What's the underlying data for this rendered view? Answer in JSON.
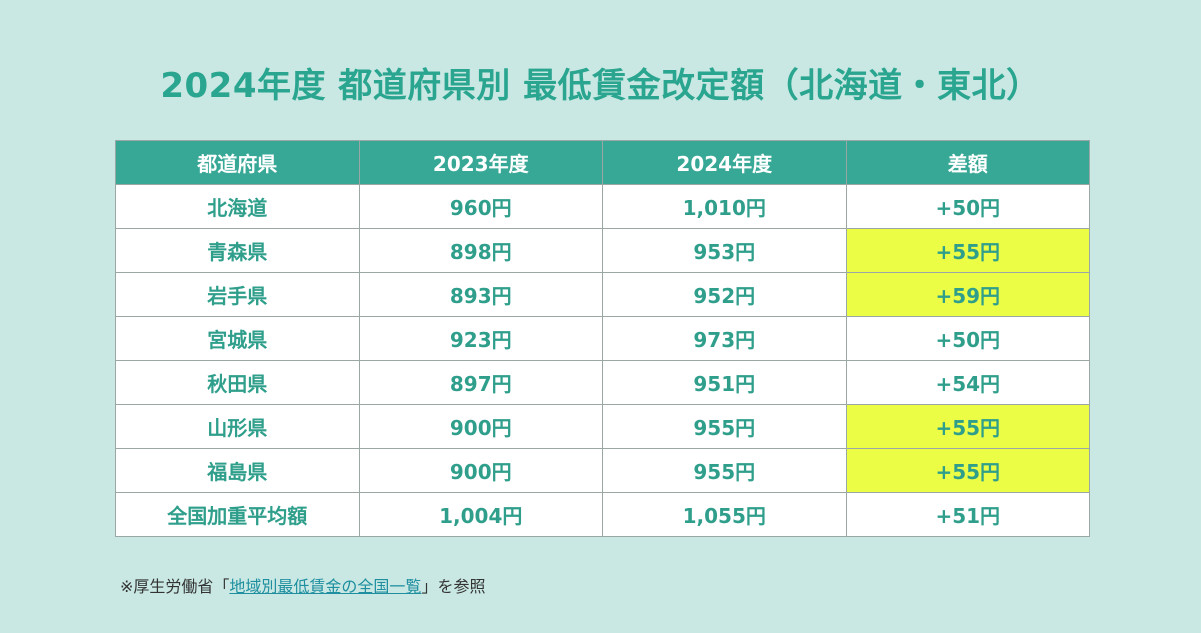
{
  "title": "2024年度 都道府県別 最低賃金改定額（北海道・東北）",
  "table": {
    "headers": [
      "都道府県",
      "2023年度",
      "2024年度",
      "差額"
    ],
    "rows": [
      {
        "pref": "北海道",
        "y2023": "960円",
        "y2024": "1,010円",
        "diff": "+50円",
        "highlight": false
      },
      {
        "pref": "青森県",
        "y2023": "898円",
        "y2024": "953円",
        "diff": "+55円",
        "highlight": true
      },
      {
        "pref": "岩手県",
        "y2023": "893円",
        "y2024": "952円",
        "diff": "+59円",
        "highlight": true
      },
      {
        "pref": "宮城県",
        "y2023": "923円",
        "y2024": "973円",
        "diff": "+50円",
        "highlight": false
      },
      {
        "pref": "秋田県",
        "y2023": "897円",
        "y2024": "951円",
        "diff": "+54円",
        "highlight": false
      },
      {
        "pref": "山形県",
        "y2023": "900円",
        "y2024": "955円",
        "diff": "+55円",
        "highlight": true
      },
      {
        "pref": "福島県",
        "y2023": "900円",
        "y2024": "955円",
        "diff": "+55円",
        "highlight": true
      },
      {
        "pref": "全国加重平均額",
        "y2023": "1,004円",
        "y2024": "1,055円",
        "diff": "+51円",
        "highlight": false
      }
    ]
  },
  "colors": {
    "background": "#c9e8e3",
    "title": "#2aa58f",
    "header_bg": "#37a896",
    "cell_text": "#2f9f8c",
    "highlight": "#ebfd45",
    "link": "#1f8fa0"
  },
  "footnote": {
    "prefix": "※厚生労働省「",
    "link_text": "地域別最低賃金の全国一覧",
    "suffix": "」を参照"
  }
}
